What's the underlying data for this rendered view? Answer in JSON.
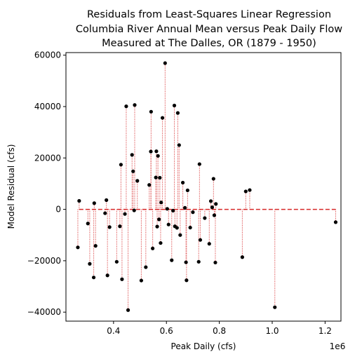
{
  "chart_data": {
    "type": "scatter",
    "title_lines": [
      "Residuals from Least-Squares Linear Regression",
      "Columbia River Annual Mean versus Peak Daily Flow",
      "Measured at The Dalles, OR (1879 - 1950)"
    ],
    "xlabel": "Peak Daily (cfs)",
    "ylabel": "Model Residual (cfs)",
    "x_offset_label": "1e6",
    "xlim": [
      0.22,
      1.26
    ],
    "ylim": [
      -43500,
      61000
    ],
    "xticks": [
      0.4,
      0.6,
      0.8,
      1.0,
      1.2
    ],
    "xtick_labels": [
      "0.4",
      "0.6",
      "0.8",
      "1.0",
      "1.2"
    ],
    "yticks": [
      -40000,
      -20000,
      0,
      20000,
      40000,
      60000
    ],
    "ytick_labels": [
      "−40000",
      "−20000",
      "0",
      "20000",
      "40000",
      "60000"
    ],
    "zero_line": {
      "x_start": 0.27,
      "x_end": 1.24,
      "style": "dashed",
      "color": "#d62728"
    },
    "stem_color": "#d62728",
    "marker_color": "#000000",
    "points": [
      {
        "x": 0.265,
        "y": -14800
      },
      {
        "x": 0.27,
        "y": 3300
      },
      {
        "x": 0.303,
        "y": -5500
      },
      {
        "x": 0.31,
        "y": -21200
      },
      {
        "x": 0.325,
        "y": -26500
      },
      {
        "x": 0.327,
        "y": 2400
      },
      {
        "x": 0.332,
        "y": -14200
      },
      {
        "x": 0.368,
        "y": -1500
      },
      {
        "x": 0.373,
        "y": 3600
      },
      {
        "x": 0.377,
        "y": -25700
      },
      {
        "x": 0.385,
        "y": -6900
      },
      {
        "x": 0.412,
        "y": -20400
      },
      {
        "x": 0.424,
        "y": -6600
      },
      {
        "x": 0.428,
        "y": 17400
      },
      {
        "x": 0.432,
        "y": -27200
      },
      {
        "x": 0.443,
        "y": -1800
      },
      {
        "x": 0.448,
        "y": 40100
      },
      {
        "x": 0.455,
        "y": -39200
      },
      {
        "x": 0.47,
        "y": 21200
      },
      {
        "x": 0.474,
        "y": 14800
      },
      {
        "x": 0.478,
        "y": -400
      },
      {
        "x": 0.48,
        "y": 40600
      },
      {
        "x": 0.49,
        "y": 11100
      },
      {
        "x": 0.505,
        "y": -27700
      },
      {
        "x": 0.522,
        "y": -22500
      },
      {
        "x": 0.535,
        "y": 9500
      },
      {
        "x": 0.541,
        "y": 22500
      },
      {
        "x": 0.542,
        "y": 38000
      },
      {
        "x": 0.548,
        "y": -15200
      },
      {
        "x": 0.56,
        "y": 12400
      },
      {
        "x": 0.562,
        "y": 22600
      },
      {
        "x": 0.565,
        "y": -6700
      },
      {
        "x": 0.568,
        "y": 20800
      },
      {
        "x": 0.572,
        "y": -3900
      },
      {
        "x": 0.575,
        "y": 12300
      },
      {
        "x": 0.578,
        "y": -13100
      },
      {
        "x": 0.58,
        "y": 2700
      },
      {
        "x": 0.585,
        "y": 35600
      },
      {
        "x": 0.595,
        "y": 56900
      },
      {
        "x": 0.603,
        "y": 200
      },
      {
        "x": 0.608,
        "y": -5900
      },
      {
        "x": 0.62,
        "y": -19800
      },
      {
        "x": 0.625,
        "y": -500
      },
      {
        "x": 0.63,
        "y": 40400
      },
      {
        "x": 0.632,
        "y": -6600
      },
      {
        "x": 0.64,
        "y": -7200
      },
      {
        "x": 0.643,
        "y": 37500
      },
      {
        "x": 0.648,
        "y": 25000
      },
      {
        "x": 0.652,
        "y": -10000
      },
      {
        "x": 0.662,
        "y": 10400
      },
      {
        "x": 0.67,
        "y": 600
      },
      {
        "x": 0.674,
        "y": -20600
      },
      {
        "x": 0.676,
        "y": -27600
      },
      {
        "x": 0.68,
        "y": 7400
      },
      {
        "x": 0.69,
        "y": -7100
      },
      {
        "x": 0.7,
        "y": -1100
      },
      {
        "x": 0.722,
        "y": -20400
      },
      {
        "x": 0.725,
        "y": 17600
      },
      {
        "x": 0.728,
        "y": -11900
      },
      {
        "x": 0.745,
        "y": -3400
      },
      {
        "x": 0.762,
        "y": -13400
      },
      {
        "x": 0.768,
        "y": 3200
      },
      {
        "x": 0.773,
        "y": 800
      },
      {
        "x": 0.778,
        "y": 11900
      },
      {
        "x": 0.781,
        "y": -2300
      },
      {
        "x": 0.785,
        "y": -20700
      },
      {
        "x": 0.787,
        "y": 2100
      },
      {
        "x": 0.887,
        "y": -18600
      },
      {
        "x": 0.9,
        "y": 7000
      },
      {
        "x": 0.915,
        "y": 7500
      },
      {
        "x": 1.01,
        "y": -38100
      },
      {
        "x": 1.24,
        "y": -5000
      }
    ]
  }
}
